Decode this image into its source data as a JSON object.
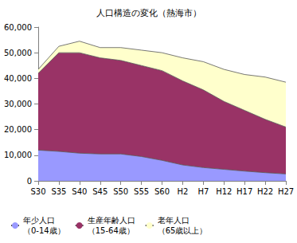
{
  "chart_data": {
    "type": "area",
    "title": "人口構造の変化（熱海市）",
    "categories": [
      "S30",
      "S35",
      "S40",
      "S45",
      "S50",
      "S55",
      "S60",
      "H2",
      "H7",
      "H12",
      "H17",
      "H22",
      "H27"
    ],
    "series": [
      {
        "name": "年少人口\n（0-14歳）",
        "color": "#9999ff",
        "values": [
          12000,
          11500,
          10800,
          10500,
          10500,
          9500,
          8000,
          6200,
          5200,
          4500,
          3800,
          3200,
          2700
        ]
      },
      {
        "name": "生産年齢人口\n（15-64歳）",
        "color": "#993366",
        "values": [
          30000,
          38500,
          39200,
          37500,
          36500,
          35500,
          35000,
          32800,
          30300,
          26500,
          23700,
          20800,
          18300
        ]
      },
      {
        "name": "老年人口\n（65歳以上）",
        "color": "#ffffcc",
        "values": [
          1500,
          2500,
          4500,
          4000,
          5000,
          6000,
          7000,
          9000,
          11000,
          12500,
          14000,
          16500,
          17500
        ]
      }
    ],
    "stacked": true,
    "ylim": [
      0,
      60000
    ],
    "yticks": [
      0,
      {
        "value": 10000,
        "label": "10,000"
      },
      {
        "value": 20000,
        "label": "20,000"
      },
      {
        "value": 30000,
        "label": "30,000"
      },
      {
        "value": 40000,
        "label": "40,000"
      },
      {
        "value": 50000,
        "label": "50,000"
      },
      {
        "value": 60000,
        "label": "60,000"
      }
    ],
    "grid": false,
    "legend": "bottom"
  }
}
